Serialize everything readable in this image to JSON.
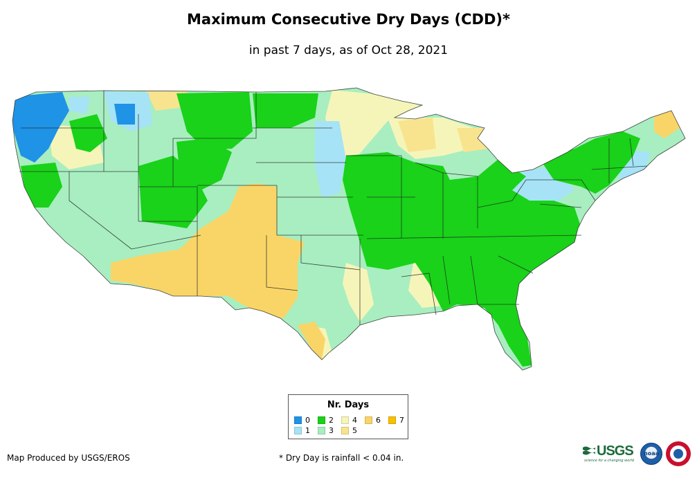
{
  "title": "Maximum Consecutive Dry Days (CDD)*",
  "subtitle": "in past 7 days, as of Oct 28, 2021",
  "legend": {
    "title": "Nr. Days",
    "items": [
      {
        "label": "0",
        "color": "#1f93e6"
      },
      {
        "label": "1",
        "color": "#a6e3f6"
      },
      {
        "label": "2",
        "color": "#19d219"
      },
      {
        "label": "3",
        "color": "#a8eec0"
      },
      {
        "label": "4",
        "color": "#f6f5b9"
      },
      {
        "label": "5",
        "color": "#f8e48e"
      },
      {
        "label": "6",
        "color": "#f9d567"
      },
      {
        "label": "7",
        "color": "#f8c000"
      }
    ]
  },
  "credit": "Map Produced by USGS/EROS",
  "footnote": "* Dry Day is rainfall < 0.04 in.",
  "logos": {
    "usgs": "USGS",
    "usgs_tagline": "science for a changing world",
    "noaa": "noaa",
    "nws": "National Weather Service"
  },
  "map": {
    "region": "Contiguous United States",
    "category_colors": {
      "d0": "#1f93e6",
      "d1": "#a6e3f6",
      "d2": "#19d219",
      "d3": "#a8eec0",
      "d4": "#f6f5b9",
      "d5": "#f8e48e",
      "d6": "#f9d567",
      "d7": "#f8c000"
    }
  }
}
